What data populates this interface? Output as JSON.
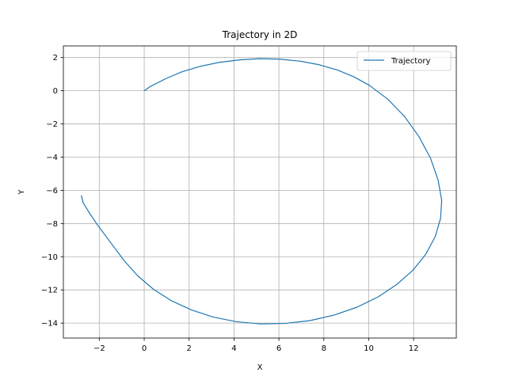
{
  "chart_data": {
    "type": "line",
    "title": "Trajectory in 2D",
    "xlabel": "X",
    "ylabel": "Y",
    "xlim": [
      -3.6,
      13.9
    ],
    "ylim": [
      -14.9,
      2.7
    ],
    "xticks": [
      -2,
      0,
      2,
      4,
      6,
      8,
      10,
      12
    ],
    "yticks": [
      -14,
      -12,
      -10,
      -8,
      -6,
      -4,
      -2,
      0,
      2
    ],
    "xtick_labels": [
      "−2",
      "0",
      "2",
      "4",
      "6",
      "8",
      "10",
      "12"
    ],
    "ytick_labels": [
      "−14",
      "−12",
      "−10",
      "−8",
      "−6",
      "−4",
      "−2",
      "0",
      "2"
    ],
    "grid": true,
    "legend": {
      "position": "top-right",
      "entries": [
        "Trajectory"
      ]
    },
    "series": [
      {
        "name": "Trajectory",
        "color": "#1f77b4",
        "x": [
          0.0,
          0.28,
          0.95,
          1.68,
          2.49,
          3.35,
          4.25,
          5.15,
          6.05,
          6.95,
          7.81,
          8.62,
          9.35,
          10.02,
          10.85,
          11.6,
          12.24,
          12.75,
          13.09,
          13.25,
          13.2,
          12.96,
          12.55,
          11.98,
          11.26,
          10.42,
          9.48,
          8.45,
          7.38,
          6.28,
          5.19,
          4.12,
          3.08,
          2.11,
          1.21,
          0.41,
          -0.29,
          -0.88,
          -1.51,
          -2.09,
          -2.48,
          -2.72,
          -2.8
        ],
        "y": [
          0.0,
          0.26,
          0.72,
          1.14,
          1.47,
          1.71,
          1.86,
          1.93,
          1.9,
          1.78,
          1.56,
          1.24,
          0.83,
          0.33,
          -0.51,
          -1.56,
          -2.77,
          -4.06,
          -5.38,
          -6.6,
          -7.69,
          -8.79,
          -9.83,
          -10.8,
          -11.66,
          -12.42,
          -13.04,
          -13.52,
          -13.85,
          -14.02,
          -14.05,
          -13.92,
          -13.64,
          -13.21,
          -12.65,
          -11.96,
          -11.15,
          -10.26,
          -9.12,
          -8.07,
          -7.28,
          -6.74,
          -6.3
        ]
      }
    ]
  }
}
